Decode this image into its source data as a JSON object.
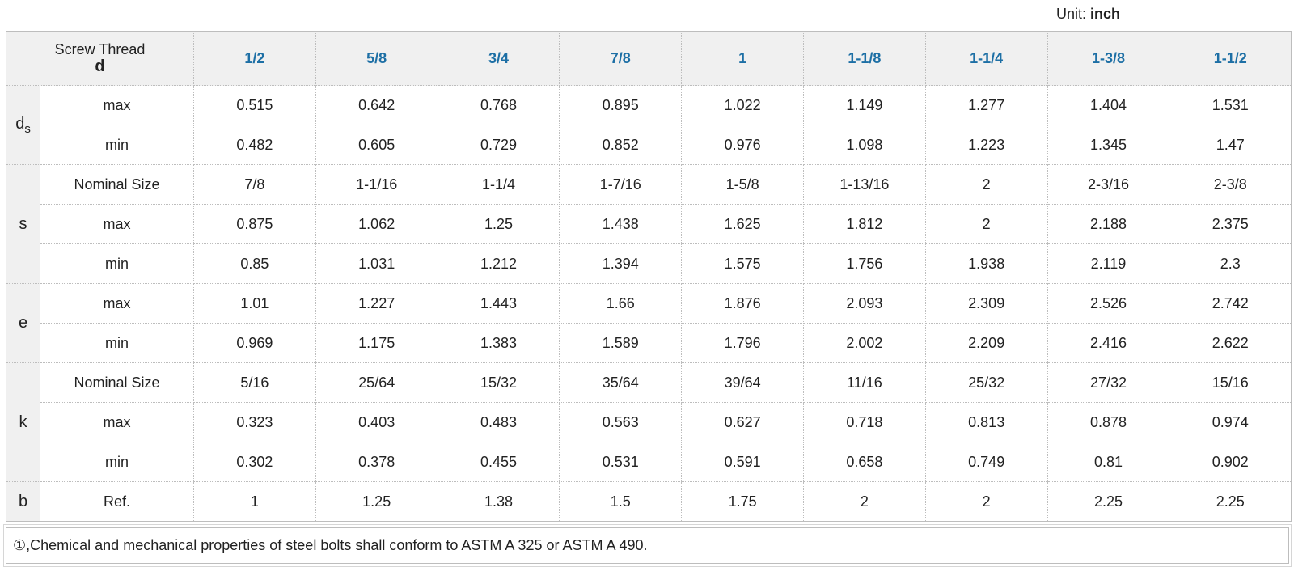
{
  "unit": {
    "label": "Unit:",
    "value": "inch"
  },
  "header": {
    "thread_label": "Screw Thread",
    "thread_symbol": "d",
    "sizes": [
      "1/2",
      "5/8",
      "3/4",
      "7/8",
      "1",
      "1-1/8",
      "1-1/4",
      "1-3/8",
      "1-1/2"
    ]
  },
  "groups": [
    {
      "symbol": "d",
      "subscript": "s",
      "rows": [
        {
          "label": "max",
          "values": [
            "0.515",
            "0.642",
            "0.768",
            "0.895",
            "1.022",
            "1.149",
            "1.277",
            "1.404",
            "1.531"
          ]
        },
        {
          "label": "min",
          "values": [
            "0.482",
            "0.605",
            "0.729",
            "0.852",
            "0.976",
            "1.098",
            "1.223",
            "1.345",
            "1.47"
          ]
        }
      ]
    },
    {
      "symbol": "s",
      "subscript": "",
      "rows": [
        {
          "label": "Nominal Size",
          "values": [
            "7/8",
            "1-1/16",
            "1-1/4",
            "1-7/16",
            "1-5/8",
            "1-13/16",
            "2",
            "2-3/16",
            "2-3/8"
          ]
        },
        {
          "label": "max",
          "values": [
            "0.875",
            "1.062",
            "1.25",
            "1.438",
            "1.625",
            "1.812",
            "2",
            "2.188",
            "2.375"
          ]
        },
        {
          "label": "min",
          "values": [
            "0.85",
            "1.031",
            "1.212",
            "1.394",
            "1.575",
            "1.756",
            "1.938",
            "2.119",
            "2.3"
          ]
        }
      ]
    },
    {
      "symbol": "e",
      "subscript": "",
      "rows": [
        {
          "label": "max",
          "values": [
            "1.01",
            "1.227",
            "1.443",
            "1.66",
            "1.876",
            "2.093",
            "2.309",
            "2.526",
            "2.742"
          ]
        },
        {
          "label": "min",
          "values": [
            "0.969",
            "1.175",
            "1.383",
            "1.589",
            "1.796",
            "2.002",
            "2.209",
            "2.416",
            "2.622"
          ]
        }
      ]
    },
    {
      "symbol": "k",
      "subscript": "",
      "rows": [
        {
          "label": "Nominal Size",
          "values": [
            "5/16",
            "25/64",
            "15/32",
            "35/64",
            "39/64",
            "11/16",
            "25/32",
            "27/32",
            "15/16"
          ]
        },
        {
          "label": "max",
          "values": [
            "0.323",
            "0.403",
            "0.483",
            "0.563",
            "0.627",
            "0.718",
            "0.813",
            "0.878",
            "0.974"
          ]
        },
        {
          "label": "min",
          "values": [
            "0.302",
            "0.378",
            "0.455",
            "0.531",
            "0.591",
            "0.658",
            "0.749",
            "0.81",
            "0.902"
          ]
        }
      ]
    },
    {
      "symbol": "b",
      "subscript": "",
      "rows": [
        {
          "label": "Ref.",
          "values": [
            "1",
            "1.25",
            "1.38",
            "1.5",
            "1.75",
            "2",
            "2",
            "2.25",
            "2.25"
          ]
        }
      ]
    }
  ],
  "note": "①,Chemical and mechanical properties of steel bolts shall conform to ASTM A 325 or ASTM A 490.",
  "colors": {
    "header_bg": "#f0f0f0",
    "size_text": "#1d6fa5",
    "border": "#bdbdbd"
  }
}
